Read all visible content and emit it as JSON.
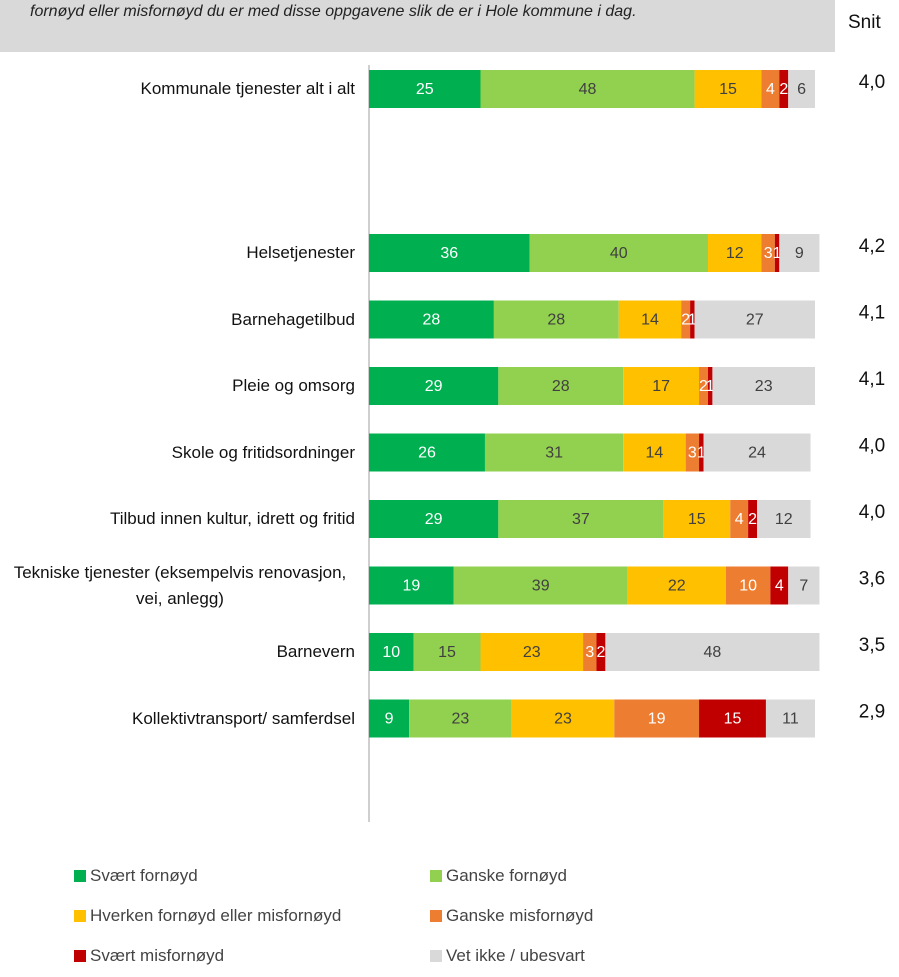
{
  "chart_data": {
    "type": "stacked_barh",
    "title": "fornøyd eller misfornøyd du er med disse oppgavene slik de er i Hole kommune i dag.",
    "categories": [
      "Kommunale tjenester alt i alt",
      "Helsetjenester",
      "Barnehagetilbud",
      "Pleie og omsorg",
      "Skole og fritidsordninger",
      "Tilbud innen kultur, idrett og fritid",
      "Tekniske tjenester (eksempelvis renovasjon, vei, anlegg)",
      "Barnevern",
      "Kollektivtransport/ samferdsel"
    ],
    "series": [
      {
        "name": "Svært fornøyd",
        "color": "#00b050",
        "label_color": "#ffffff",
        "values": [
          25,
          36,
          28,
          29,
          26,
          29,
          19,
          10,
          9
        ]
      },
      {
        "name": "Ganske fornøyd",
        "color": "#92d050",
        "label_color": "#404040",
        "values": [
          48,
          40,
          28,
          28,
          31,
          37,
          39,
          15,
          23
        ]
      },
      {
        "name": "Hverken fornøyd eller misfornøyd",
        "color": "#ffc000",
        "label_color": "#404040",
        "values": [
          15,
          12,
          14,
          17,
          14,
          15,
          22,
          23,
          23
        ]
      },
      {
        "name": "Ganske misfornøyd",
        "color": "#ed7d31",
        "label_color": "#ffffff",
        "values": [
          4,
          3,
          2,
          2,
          3,
          4,
          10,
          3,
          19
        ]
      },
      {
        "name": "Svært misfornøyd",
        "color": "#c00000",
        "label_color": "#ffffff",
        "values": [
          2,
          1,
          1,
          1,
          1,
          2,
          4,
          2,
          15
        ]
      },
      {
        "name": "Vet ikke / ubesvart",
        "color": "#d9d9d9",
        "label_color": "#404040",
        "values": [
          6,
          9,
          27,
          23,
          24,
          12,
          7,
          48,
          11
        ]
      }
    ],
    "xlim": [
      0,
      100
    ],
    "snit": {
      "title": "Snit",
      "values": [
        4.0,
        4.2,
        4.1,
        4.1,
        4.0,
        4.0,
        3.6,
        3.5,
        2.9
      ],
      "value_labels": [
        "4,0",
        "4,2",
        "4,1",
        "4,1",
        "4,0",
        "4,0",
        "3,6",
        "3,5",
        "2,9"
      ]
    }
  }
}
